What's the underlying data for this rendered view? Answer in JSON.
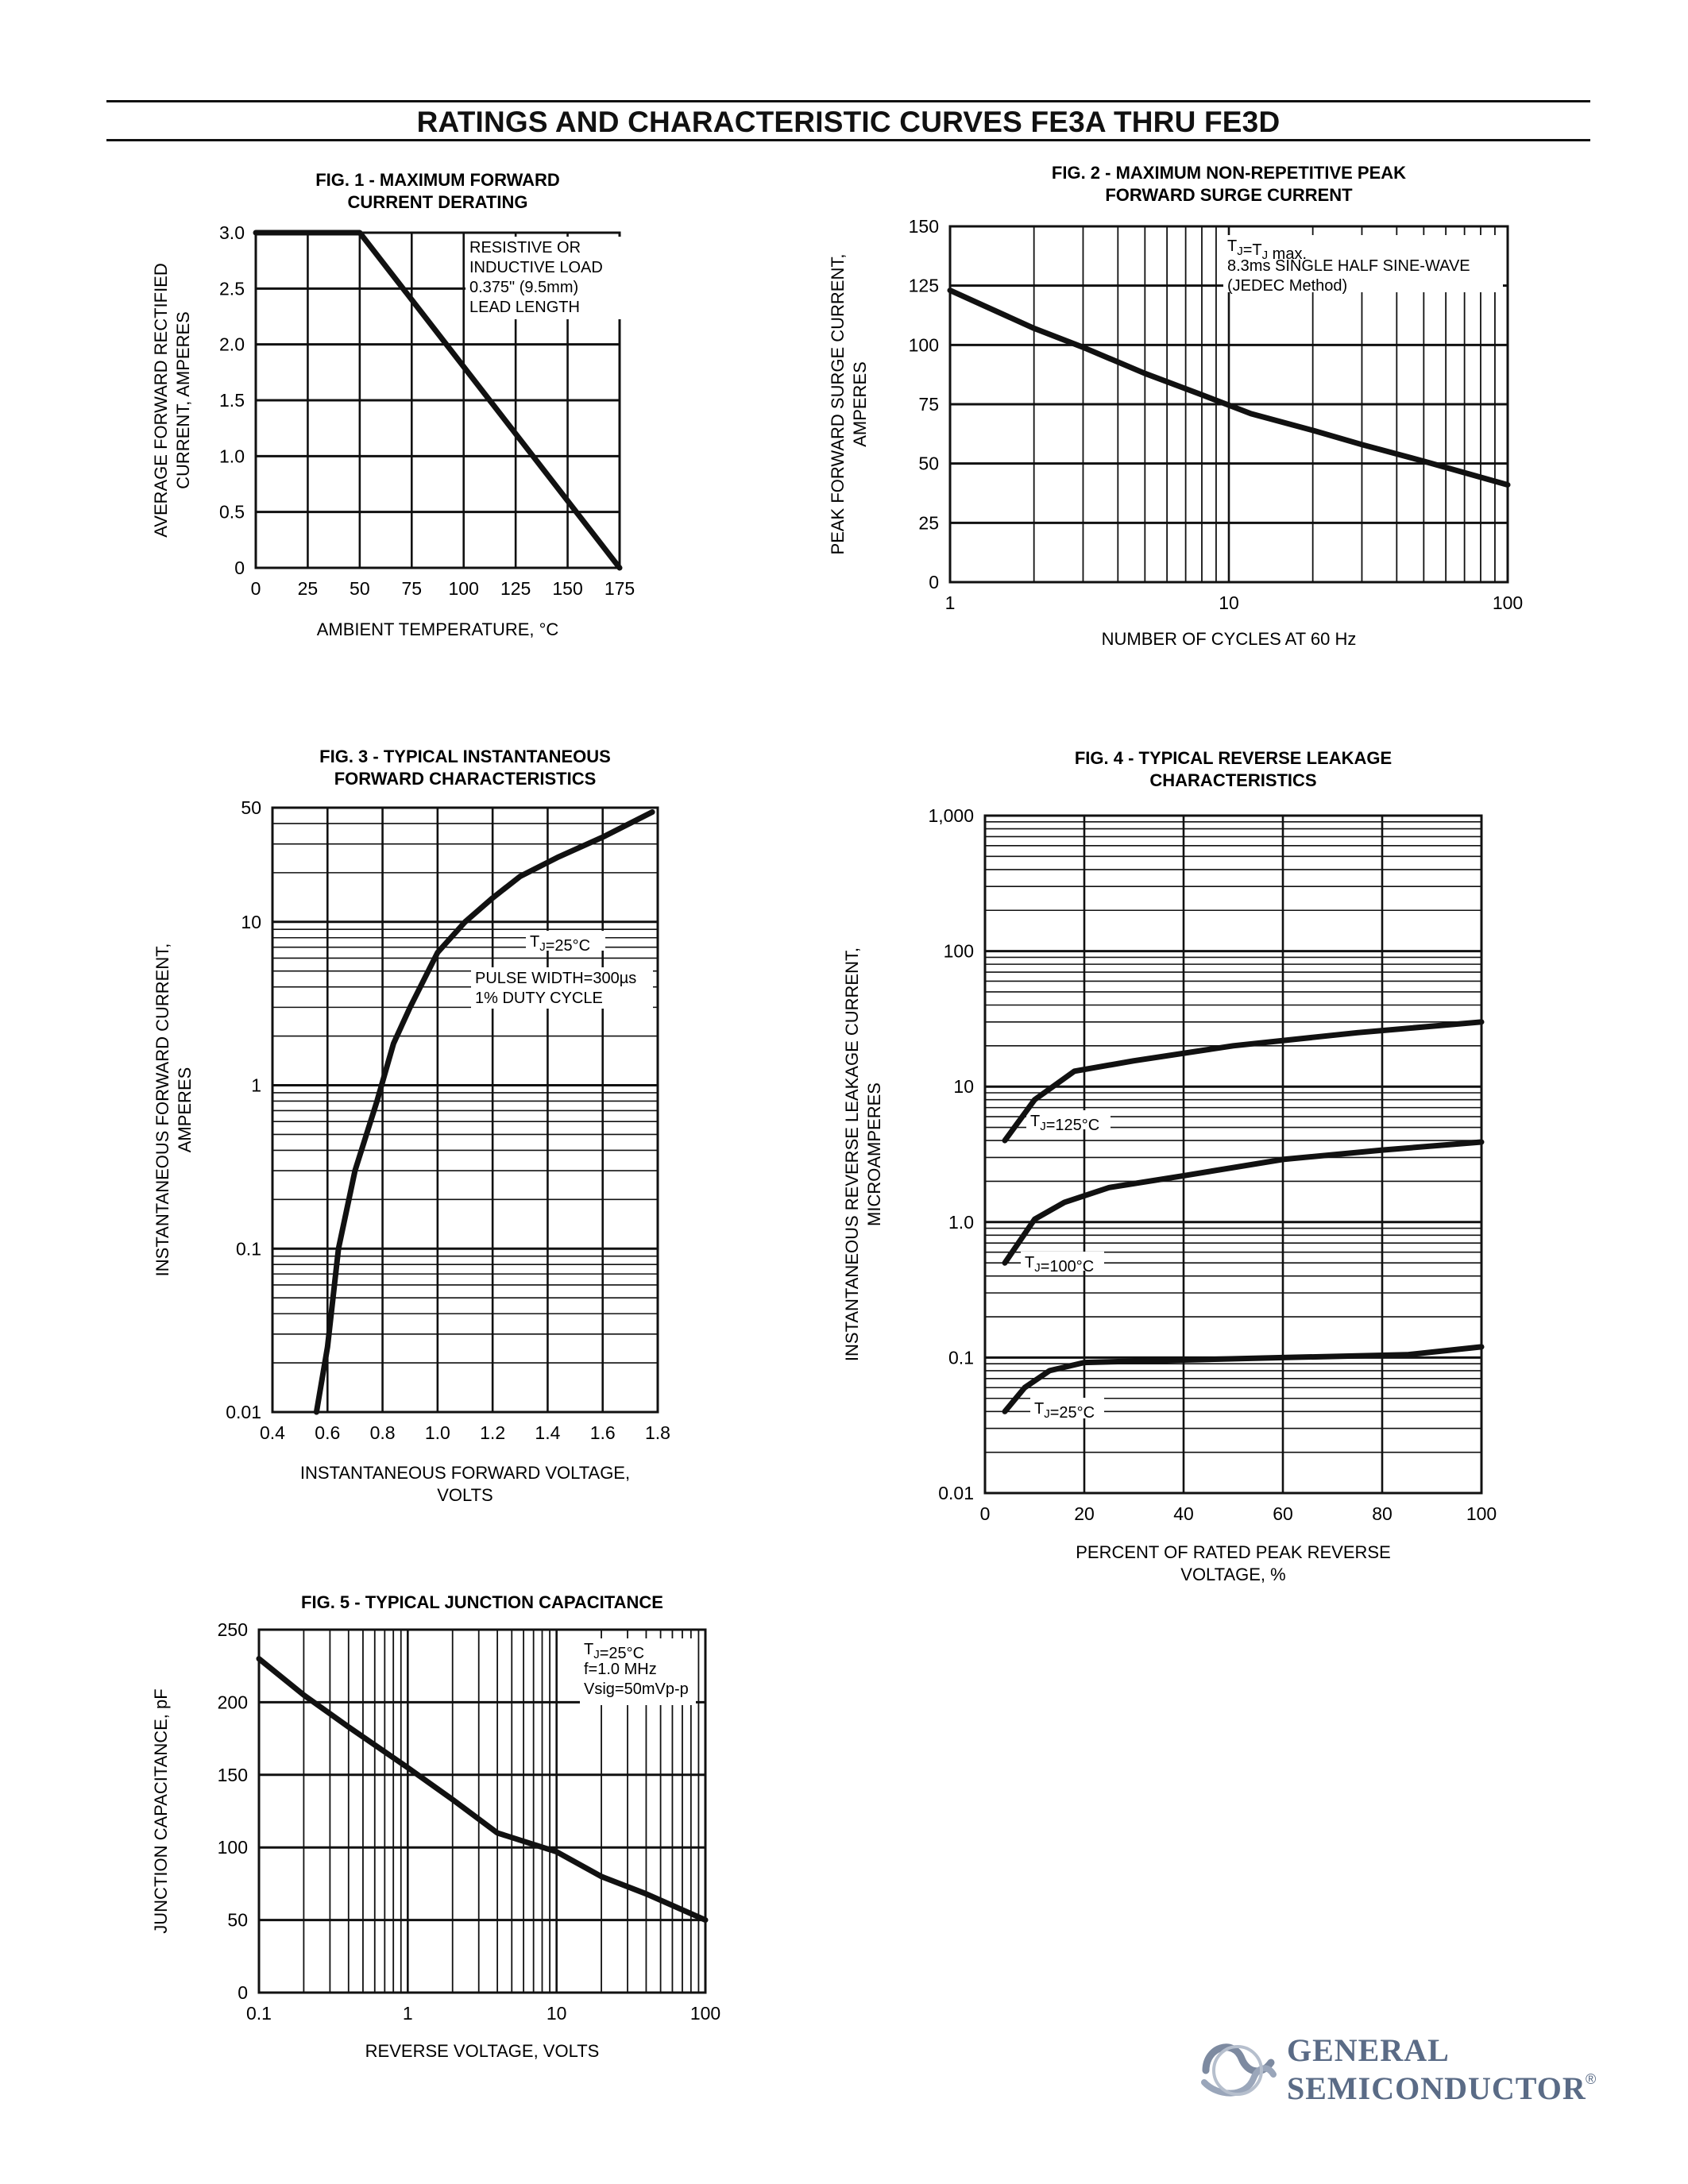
{
  "page": {
    "title": "RATINGS AND CHARACTERISTIC CURVES FE3A THRU FE3D",
    "brand": {
      "line1": "GENERAL",
      "line2": "SEMICONDUCTOR",
      "mark": "®",
      "logo_icon": "gs-logo-icon",
      "color": "#5a6b86"
    }
  },
  "chart_data": [
    {
      "id": "fig1",
      "type": "line",
      "title": [
        "FIG. 1 - MAXIMUM FORWARD",
        "CURRENT DERATING"
      ],
      "xlabel": [
        "AMBIENT TEMPERATURE, °C"
      ],
      "ylabel": [
        "AVERAGE FORWARD RECTIFIED",
        "CURRENT, AMPERES"
      ],
      "xscale": "linear",
      "yscale": "linear",
      "xlim": [
        0,
        175
      ],
      "ylim": [
        0,
        3.0
      ],
      "xticks": [
        0,
        25,
        50,
        75,
        100,
        125,
        150,
        175
      ],
      "xtick_labels": [
        "0",
        "25",
        "50",
        "75",
        "100",
        "125",
        "150",
        "175"
      ],
      "yticks": [
        0,
        0.5,
        1.0,
        1.5,
        2.0,
        2.5,
        3.0
      ],
      "ytick_labels": [
        "0",
        "0.5",
        "1.0",
        "1.5",
        "2.0",
        "2.5",
        "3.0"
      ],
      "grid_x": [
        25,
        50,
        75,
        100,
        125,
        150
      ],
      "grid_y_major": [
        0.5,
        1.0,
        1.5,
        2.0,
        2.5
      ],
      "grid_y_minor": [],
      "annotations": [
        {
          "lines": [
            "RESISTIVE OR",
            "INDUCTIVE LOAD",
            "0.375\" (9.5mm)",
            "LEAD LENGTH"
          ],
          "x": 103,
          "y": 2.9
        }
      ],
      "series": [
        {
          "x": [
            0,
            50,
            175
          ],
          "y": [
            3.0,
            3.0,
            0
          ]
        }
      ]
    },
    {
      "id": "fig2",
      "type": "line",
      "title": [
        "FIG. 2 - MAXIMUM NON-REPETITIVE PEAK",
        "FORWARD SURGE CURRENT"
      ],
      "xlabel": [
        "NUMBER OF CYCLES AT 60 Hz"
      ],
      "ylabel": [
        "PEAK FORWARD SURGE CURRENT,",
        "AMPERES"
      ],
      "xscale": "log",
      "yscale": "linear",
      "xlim": [
        1,
        100
      ],
      "ylim": [
        0,
        150
      ],
      "xticks": [
        1,
        10,
        100
      ],
      "xtick_labels": [
        "1",
        "10",
        "100"
      ],
      "yticks": [
        0,
        25,
        50,
        75,
        100,
        125,
        150
      ],
      "ytick_labels": [
        "0",
        "25",
        "50",
        "75",
        "100",
        "125",
        "150"
      ],
      "grid_x": [
        2,
        3,
        4,
        5,
        6,
        7,
        8,
        9,
        10,
        20,
        30,
        40,
        50,
        60,
        70,
        80,
        90
      ],
      "grid_y_major": [
        25,
        50,
        75,
        100,
        125
      ],
      "grid_y_minor": [],
      "annotations": [
        {
          "lines": [
            "TJ=TJ max.",
            "8.3ms SINGLE HALF SINE-WAVE",
            "(JEDEC Method)"
          ],
          "x": 11,
          "y": 144
        }
      ],
      "series": [
        {
          "x": [
            1,
            2,
            3,
            5,
            8,
            12,
            20,
            30,
            50,
            100
          ],
          "y": [
            123,
            107,
            99,
            88,
            79,
            71,
            64,
            58,
            51,
            41
          ]
        }
      ]
    },
    {
      "id": "fig3",
      "type": "line",
      "title": [
        "FIG. 3 - TYPICAL INSTANTANEOUS",
        "FORWARD CHARACTERISTICS"
      ],
      "xlabel": [
        "INSTANTANEOUS FORWARD VOLTAGE,",
        "VOLTS"
      ],
      "ylabel": [
        "INSTANTANEOUS FORWARD CURRENT,",
        "AMPERES"
      ],
      "xscale": "linear",
      "yscale": "log",
      "xlim": [
        0.4,
        1.8
      ],
      "ylim": [
        0.01,
        50
      ],
      "xticks": [
        0.4,
        0.6,
        0.8,
        1.0,
        1.2,
        1.4,
        1.6,
        1.8
      ],
      "xtick_labels": [
        "0.4",
        "0.6",
        "0.8",
        "1.0",
        "1.2",
        "1.4",
        "1.6",
        "1.8"
      ],
      "yticks": [
        0.01,
        0.1,
        1,
        10,
        50
      ],
      "ytick_labels": [
        "0.01",
        "0.1",
        "1",
        "10",
        "50"
      ],
      "grid_x": [
        0.6,
        0.8,
        1.0,
        1.2,
        1.4,
        1.6
      ],
      "grid_y_major": [
        0.1,
        1,
        10
      ],
      "grid_y_minor": [
        0.02,
        0.03,
        0.04,
        0.05,
        0.06,
        0.07,
        0.08,
        0.09,
        0.2,
        0.3,
        0.4,
        0.5,
        0.6,
        0.7,
        0.8,
        0.9,
        2,
        3,
        4,
        5,
        6,
        7,
        8,
        9,
        20,
        30,
        40
      ],
      "annotations": [
        {
          "lines": [
            "TJ=25°C"
          ],
          "x": 1.38,
          "y": 7.8
        },
        {
          "lines": [
            "PULSE WIDTH=300µs",
            "1% DUTY CYCLE"
          ],
          "x": 1.14,
          "y": 4.5
        }
      ],
      "series": [
        {
          "x": [
            0.56,
            0.6,
            0.64,
            0.7,
            0.78,
            0.84,
            0.9,
            1.0,
            1.1,
            1.2,
            1.3,
            1.44,
            1.6,
            1.78
          ],
          "y": [
            0.01,
            0.025,
            0.1,
            0.3,
            0.8,
            1.8,
            3.0,
            6.5,
            10,
            14,
            19,
            25,
            33,
            47
          ]
        }
      ]
    },
    {
      "id": "fig4",
      "type": "line",
      "title": [
        "FIG. 4 - TYPICAL REVERSE LEAKAGE",
        "CHARACTERISTICS"
      ],
      "xlabel": [
        "PERCENT OF RATED PEAK REVERSE",
        "VOLTAGE, %"
      ],
      "ylabel": [
        "INSTANTANEOUS REVERSE LEAKAGE CURRENT,",
        "MICROAMPERES"
      ],
      "xscale": "linear",
      "yscale": "log",
      "xlim": [
        0,
        100
      ],
      "ylim": [
        0.01,
        1000
      ],
      "xticks": [
        0,
        20,
        40,
        60,
        80,
        100
      ],
      "xtick_labels": [
        "0",
        "20",
        "40",
        "60",
        "80",
        "100"
      ],
      "yticks": [
        0.01,
        0.1,
        1.0,
        10,
        100,
        1000
      ],
      "ytick_labels": [
        "0.01",
        "0.1",
        "1.0",
        "10",
        "100",
        "1,000"
      ],
      "grid_x": [
        20,
        40,
        60,
        80
      ],
      "grid_y_major": [
        0.1,
        1,
        10,
        100
      ],
      "grid_y_minor": [
        0.02,
        0.03,
        0.04,
        0.05,
        0.06,
        0.07,
        0.08,
        0.09,
        0.2,
        0.3,
        0.4,
        0.5,
        0.6,
        0.7,
        0.8,
        0.9,
        2,
        3,
        4,
        5,
        6,
        7,
        8,
        9,
        20,
        30,
        40,
        50,
        60,
        70,
        80,
        90,
        200,
        300,
        400,
        500,
        600,
        700,
        800,
        900
      ],
      "annotations": [
        {
          "lines": [
            "TJ=125°C"
          ],
          "x": 11,
          "y": 5.8
        },
        {
          "lines": [
            "TJ=100°C"
          ],
          "x": 8.5,
          "y": 0.58
        },
        {
          "lines": [
            "TJ=25°C"
          ],
          "x": 10.5,
          "y": 0.05
        }
      ],
      "series": [
        {
          "name": "TJ=125°C",
          "x": [
            4,
            10,
            18,
            30,
            50,
            75,
            100
          ],
          "y": [
            4,
            8,
            13,
            15.5,
            20,
            25,
            30
          ]
        },
        {
          "name": "TJ=100°C",
          "x": [
            4,
            10,
            16,
            25,
            40,
            60,
            80,
            100
          ],
          "y": [
            0.5,
            1.05,
            1.4,
            1.8,
            2.2,
            2.9,
            3.4,
            3.9
          ]
        },
        {
          "name": "TJ=25°C",
          "x": [
            4,
            8,
            13,
            20,
            35,
            60,
            85,
            100
          ],
          "y": [
            0.04,
            0.06,
            0.08,
            0.092,
            0.095,
            0.1,
            0.105,
            0.12
          ]
        }
      ]
    },
    {
      "id": "fig5",
      "type": "line",
      "title": [
        "FIG. 5 - TYPICAL JUNCTION CAPACITANCE"
      ],
      "xlabel": [
        "REVERSE VOLTAGE, VOLTS"
      ],
      "ylabel": [
        "JUNCTION CAPACITANCE, pF"
      ],
      "xscale": "log",
      "yscale": "linear",
      "xlim": [
        0.1,
        100
      ],
      "ylim": [
        0,
        250
      ],
      "xticks": [
        0.1,
        1,
        10,
        100
      ],
      "xtick_labels": [
        "0.1",
        "1",
        "10",
        "100"
      ],
      "yticks": [
        0,
        50,
        100,
        150,
        200,
        250
      ],
      "ytick_labels": [
        "0",
        "50",
        "100",
        "150",
        "200",
        "250"
      ],
      "grid_x": [
        0.2,
        0.3,
        0.4,
        0.5,
        0.6,
        0.7,
        0.8,
        0.9,
        1,
        2,
        3,
        4,
        5,
        6,
        7,
        8,
        9,
        10,
        20,
        30,
        40,
        50,
        60,
        70,
        80,
        90
      ],
      "grid_y_major": [
        50,
        100,
        150,
        200
      ],
      "grid_y_minor": [],
      "annotations": [
        {
          "lines": [
            "TJ=25°C",
            "f=1.0 MHz",
            "Vsig=50mVp-p"
          ],
          "x": 14,
          "y": 244
        }
      ],
      "series": [
        {
          "x": [
            0.1,
            0.2,
            0.4,
            1,
            2,
            4,
            10,
            20,
            40,
            100
          ],
          "y": [
            230,
            205,
            183,
            155,
            133,
            110,
            97,
            80,
            68,
            50
          ]
        }
      ]
    }
  ]
}
